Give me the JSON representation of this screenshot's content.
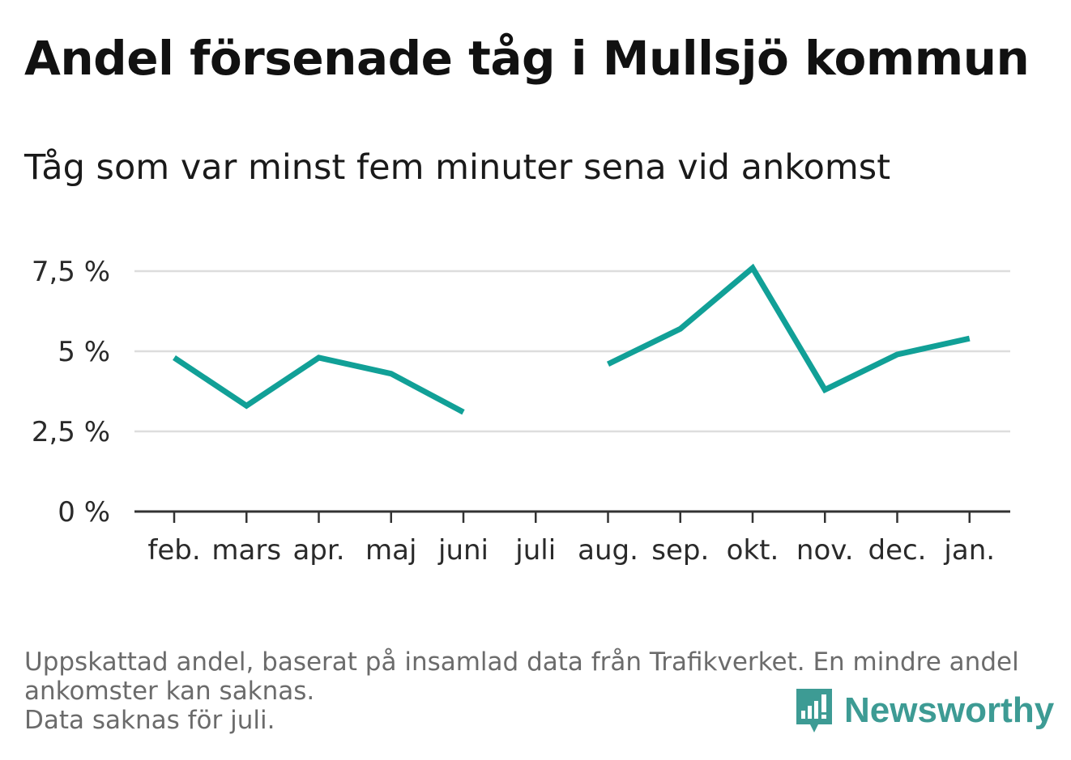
{
  "title": "Andel försenade tåg i Mullsjö kommun",
  "subtitle": "Tåg som var minst fem minuter sena vid ankomst",
  "footnote": {
    "line1": "Uppskattad andel, baserat på insamlad data från Trafikverket. En mindre andel",
    "line2": "ankomster kan saknas.",
    "line3": "Data saknas för juli."
  },
  "brand": {
    "name": "Newsworthy",
    "icon": "newsworthy-logo-icon",
    "color": "#3d9b94"
  },
  "colors": {
    "line": "#11a097",
    "grid": "#dddddd",
    "axis": "#333333"
  },
  "chart_data": {
    "type": "line",
    "categories": [
      "feb.",
      "mars",
      "apr.",
      "maj",
      "juni",
      "juli",
      "aug.",
      "sep.",
      "okt.",
      "nov.",
      "dec.",
      "jan."
    ],
    "series": [
      {
        "values": [
          4.8,
          3.3,
          4.8,
          4.3,
          3.1,
          null,
          4.6,
          5.7,
          7.6,
          3.8,
          4.9,
          5.4
        ]
      }
    ],
    "y_ticks": [
      0,
      2.5,
      5,
      7.5
    ],
    "y_tick_labels": [
      "0 %",
      "2,5 %",
      "5 %",
      "7,5 %"
    ],
    "ylim": [
      0,
      7.5
    ],
    "grid": true,
    "legend": "none"
  }
}
